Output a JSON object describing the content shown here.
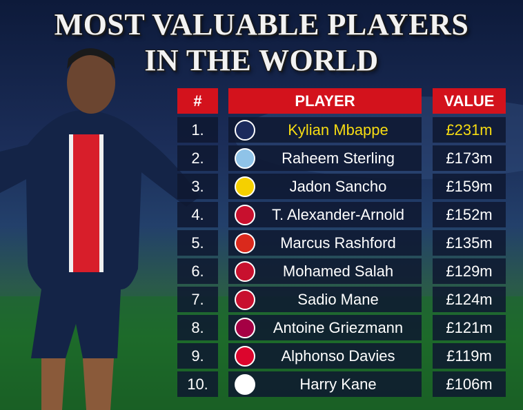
{
  "header": {
    "title_line1": "MOST VALUABLE PLAYERS",
    "title_line2": "IN THE WORLD"
  },
  "table": {
    "columns": [
      "#",
      "PLAYER",
      "VALUE"
    ],
    "rows": [
      [
        "1.",
        "Kylian Mbappe",
        "£231m"
      ],
      [
        "2.",
        "Raheem Sterling",
        "£173m"
      ],
      [
        "3.",
        "Jadon Sancho",
        "£159m"
      ],
      [
        "4.",
        "T. Alexander-Arnold",
        "£152m"
      ],
      [
        "5.",
        "Marcus Rashford",
        "£135m"
      ],
      [
        "6.",
        "Mohamed Salah",
        "£129m"
      ],
      [
        "7.",
        "Sadio Mane",
        "£124m"
      ],
      [
        "8.",
        "Antoine Griezmann",
        "£121m"
      ],
      [
        "9.",
        "Alphonso Davies",
        "£119m"
      ],
      [
        "10.",
        "Harry Kane",
        "£106m"
      ]
    ]
  }
}
